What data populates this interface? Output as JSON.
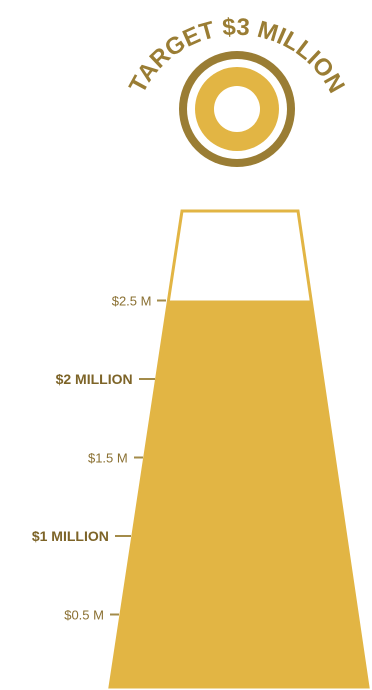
{
  "target_label": "TARGET $3 MILLION",
  "target_value_millions": 3,
  "raised_level_millions": 2.5,
  "colors": {
    "fill": "#e2b544",
    "ring_outer": "#9a7d34",
    "ring_inner": "#e2b544",
    "text": "#8a7032"
  },
  "markers": [
    {
      "label": "$2.5 M",
      "value": 2.5,
      "major": false
    },
    {
      "label": "$2 MILLION",
      "value": 2.0,
      "major": true
    },
    {
      "label": "$1.5 M",
      "value": 1.5,
      "major": false
    },
    {
      "label": "$1 MILLION",
      "value": 1.0,
      "major": true
    },
    {
      "label": "$0.5 M",
      "value": 0.5,
      "major": false
    }
  ]
}
